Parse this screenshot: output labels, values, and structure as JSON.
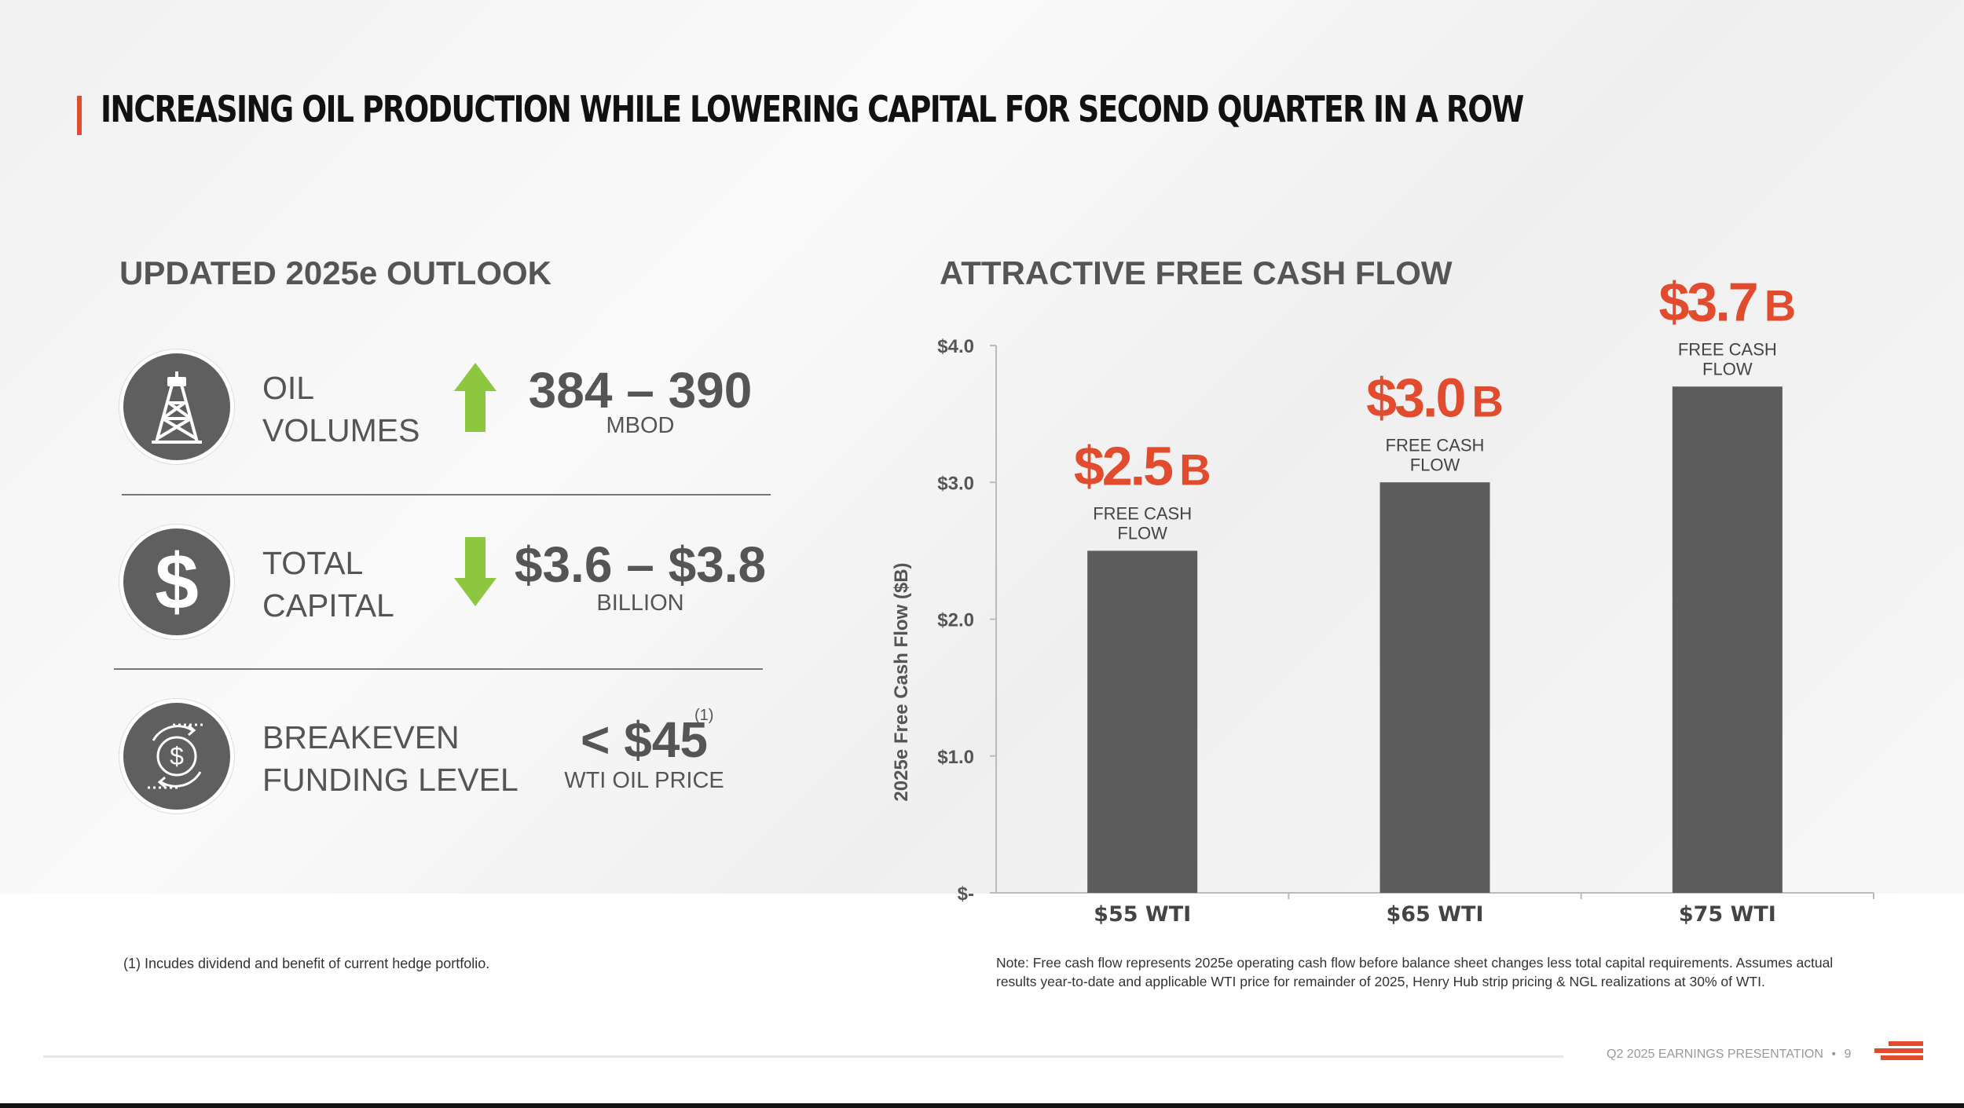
{
  "title": "INCREASING OIL PRODUCTION WHILE LOWERING CAPITAL FOR SECOND QUARTER IN A ROW",
  "left": {
    "heading": "UPDATED 2025e OUTLOOK",
    "rows": [
      {
        "icon": "oil-derrick-icon",
        "label_line1": "OIL",
        "label_line2": "VOLUMES",
        "arrow": "up",
        "value": "384 – 390",
        "unit": "MBOD"
      },
      {
        "icon": "dollar-icon",
        "label_line1": "TOTAL",
        "label_line2": "CAPITAL",
        "arrow": "down",
        "value": "$3.6 – $3.8",
        "unit": "BILLION"
      },
      {
        "icon": "dollar-cycle-icon",
        "label_line1": "BREAKEVEN",
        "label_line2": "FUNDING LEVEL",
        "value": "< $45",
        "superscript": "(1)",
        "unit": "WTI OIL PRICE"
      }
    ],
    "footnote": "(1) Incudes dividend and benefit of current hedge portfolio."
  },
  "right": {
    "heading": "ATTRACTIVE FREE CASH FLOW",
    "note": "Note: Free cash flow represents 2025e operating cash flow before balance sheet changes less total capital requirements. Assumes actual results year-to-date and applicable WTI price for remainder of 2025, Henry Hub strip pricing & NGL realizations at 30% of WTI."
  },
  "chart_data": {
    "type": "bar",
    "categories": [
      "$55 WTI",
      "$65 WTI",
      "$75 WTI"
    ],
    "values": [
      2.5,
      3.0,
      3.7
    ],
    "value_labels": [
      "$2.5",
      "$3.0",
      "$3.7"
    ],
    "value_suffix": "B",
    "value_sublabel_line1": "FREE CASH",
    "value_sublabel_line2": "FLOW",
    "ylabel": "2025e Free Cash Flow ($B)",
    "ylim": [
      0,
      4
    ],
    "yticks": [
      0,
      1,
      2,
      3,
      4
    ],
    "ytick_labels": [
      "$-",
      "$1.0",
      "$2.0",
      "$3.0",
      "$4.0"
    ],
    "bar_color": "#5c5c5c",
    "label_color": "#e14b2e",
    "grid": false
  },
  "footer": {
    "presentation": "Q2 2025 EARNINGS PRESENTATION",
    "bullet": "•",
    "page": "9"
  },
  "colors": {
    "accent": "#e14b2e",
    "arrow_green": "#8dc63f",
    "dark_gray": "#5f5f5f"
  }
}
